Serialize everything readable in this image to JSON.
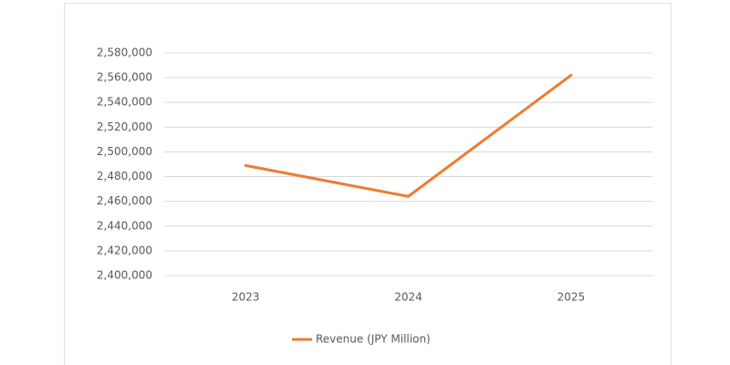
{
  "chart_data": {
    "type": "line",
    "categories": [
      "2023",
      "2024",
      "2025"
    ],
    "series": [
      {
        "name": "Revenue (JPY Million)",
        "color": "#ed7d31",
        "values": [
          2489000,
          2464000,
          2562000
        ]
      }
    ],
    "ylim": [
      2400000,
      2580000
    ],
    "yticks": [
      {
        "value": 2400000,
        "label": "2,400,000"
      },
      {
        "value": 2420000,
        "label": "2,420,000"
      },
      {
        "value": 2440000,
        "label": "2,440,000"
      },
      {
        "value": 2460000,
        "label": "2,460,000"
      },
      {
        "value": 2480000,
        "label": "2,480,000"
      },
      {
        "value": 2500000,
        "label": "2,500,000"
      },
      {
        "value": 2520000,
        "label": "2,520,000"
      },
      {
        "value": 2540000,
        "label": "2,540,000"
      },
      {
        "value": 2560000,
        "label": "2,560,000"
      },
      {
        "value": 2580000,
        "label": "2,580,000"
      }
    ],
    "grid": true,
    "legend": "bottom"
  }
}
